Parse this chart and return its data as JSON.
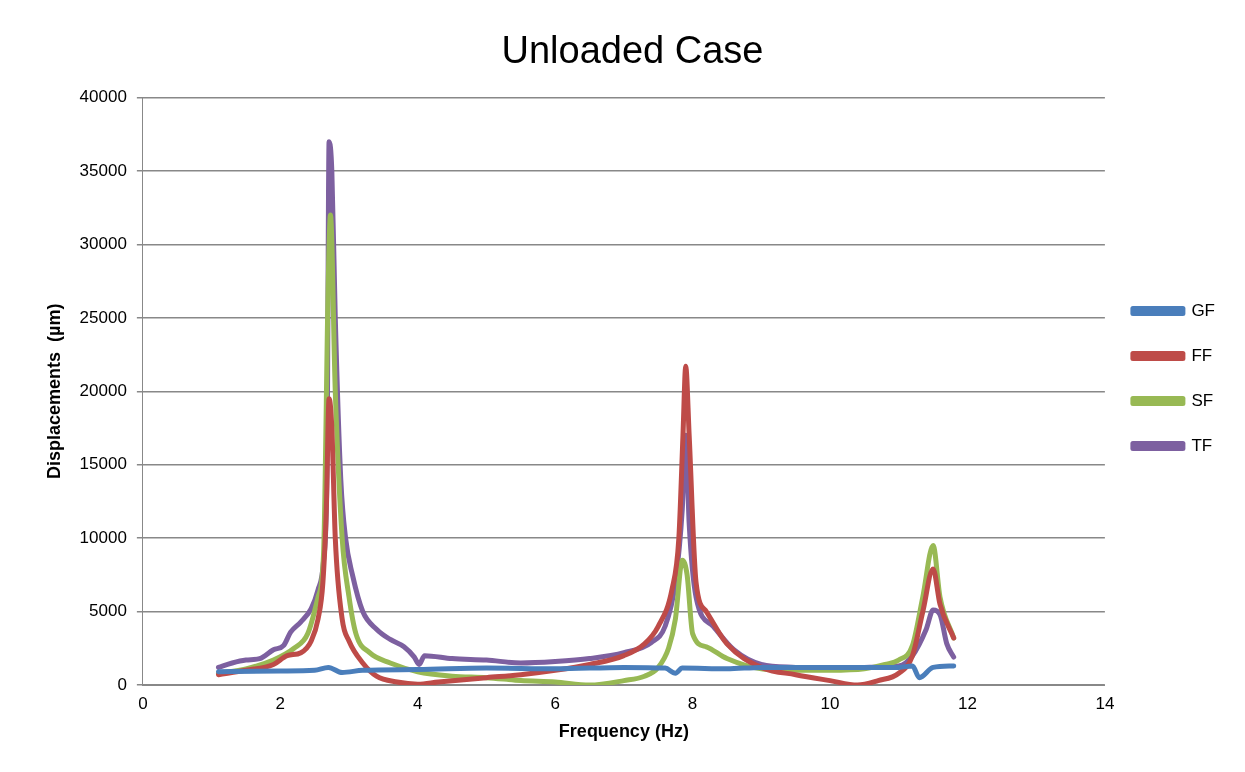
{
  "chart_data": {
    "type": "line",
    "title": "Unloaded Case",
    "xlabel": "Frequency (Hz)",
    "ylabel": "Displacements  (µm)",
    "xlim": [
      0,
      14
    ],
    "xticks": [
      0,
      2,
      4,
      6,
      8,
      10,
      12,
      14
    ],
    "ylim": [
      0,
      40000
    ],
    "yticks": [
      0,
      5000,
      10000,
      15000,
      20000,
      25000,
      30000,
      35000,
      40000
    ],
    "grid": "y",
    "legend": "right",
    "marker": "none",
    "line_style": "solid",
    "series": [
      {
        "name": "GF",
        "color": "#4a7ebb",
        "x": [
          1.1,
          2,
          2.5,
          2.7,
          2.9,
          3.2,
          4,
          5,
          6,
          7,
          7.6,
          7.75,
          7.85,
          8.5,
          9,
          10,
          11,
          11.2,
          11.3,
          11.5,
          11.8
        ],
        "values": [
          900,
          950,
          1000,
          1200,
          850,
          1000,
          1050,
          1150,
          1100,
          1200,
          1150,
          800,
          1150,
          1100,
          1200,
          1200,
          1200,
          1300,
          500,
          1200,
          1300
        ]
      },
      {
        "name": "FF",
        "color": "#be4b48",
        "x": [
          1.1,
          1.5,
          1.9,
          2.1,
          2.3,
          2.45,
          2.55,
          2.62,
          2.67,
          2.71,
          2.75,
          2.8,
          2.9,
          3.0,
          3.2,
          3.4,
          3.7,
          4.0,
          4.3,
          5,
          5.5,
          6,
          6.5,
          7,
          7.3,
          7.5,
          7.7,
          7.8,
          7.86,
          7.9,
          7.95,
          8.05,
          8.2,
          8.5,
          9,
          9.5,
          10,
          10.4,
          10.7,
          11,
          11.2,
          11.35,
          11.5,
          11.6,
          11.8
        ],
        "values": [
          700,
          1000,
          1400,
          2000,
          2200,
          3000,
          4500,
          7000,
          12000,
          19500,
          17500,
          10000,
          4500,
          3000,
          1500,
          600,
          200,
          50,
          200,
          500,
          700,
          1000,
          1400,
          2000,
          2800,
          4000,
          6500,
          10000,
          17000,
          21700,
          17000,
          7000,
          5000,
          2800,
          1200,
          700,
          300,
          0,
          300,
          800,
          2000,
          5000,
          7900,
          5500,
          3200
        ]
      },
      {
        "name": "SF",
        "color": "#98b954",
        "x": [
          1.1,
          1.5,
          1.9,
          2.2,
          2.4,
          2.55,
          2.63,
          2.7,
          2.73,
          2.8,
          2.9,
          3.0,
          3.1,
          3.3,
          3.6,
          4,
          4.5,
          5,
          5.5,
          6,
          6.5,
          7,
          7.3,
          7.5,
          7.65,
          7.75,
          7.85,
          7.92,
          8.0,
          8.2,
          8.5,
          9,
          9.5,
          10,
          10.5,
          10.8,
          11,
          11.2,
          11.35,
          11.5,
          11.6,
          11.8
        ],
        "values": [
          800,
          1100,
          1700,
          2500,
          3500,
          6000,
          9000,
          28000,
          32000,
          20000,
          10000,
          6000,
          3500,
          2200,
          1500,
          900,
          600,
          500,
          300,
          200,
          0,
          300,
          600,
          1200,
          2500,
          4500,
          8500,
          7500,
          3500,
          2600,
          1800,
          1100,
          1000,
          1000,
          1100,
          1400,
          1700,
          2700,
          6000,
          9500,
          6000,
          3200
        ]
      },
      {
        "name": "TF",
        "color": "#7d60a0",
        "x": [
          1.1,
          1.3,
          1.5,
          1.7,
          1.9,
          2.05,
          2.15,
          2.3,
          2.45,
          2.55,
          2.63,
          2.68,
          2.71,
          2.75,
          2.8,
          2.88,
          2.95,
          3.05,
          3.2,
          3.4,
          3.6,
          3.8,
          3.95,
          4.02,
          4.1,
          4.5,
          5,
          5.5,
          6,
          6.5,
          7,
          7.4,
          7.6,
          7.75,
          7.85,
          7.9,
          7.95,
          8.05,
          8.3,
          8.6,
          9,
          9.5,
          10,
          10.5,
          11,
          11.2,
          11.4,
          11.5,
          11.6,
          11.7,
          11.8
        ],
        "values": [
          1200,
          1500,
          1700,
          1800,
          2400,
          2700,
          3600,
          4300,
          5200,
          6500,
          8500,
          15000,
          37000,
          35000,
          25000,
          14000,
          10000,
          7500,
          5000,
          3800,
          3100,
          2600,
          1900,
          1400,
          2000,
          1800,
          1700,
          1500,
          1600,
          1800,
          2200,
          2900,
          4000,
          7000,
          12000,
          17000,
          11000,
          6000,
          4000,
          2400,
          1400,
          1200,
          1100,
          1200,
          1300,
          2000,
          3800,
          5100,
          4800,
          2800,
          1900
        ]
      }
    ]
  }
}
